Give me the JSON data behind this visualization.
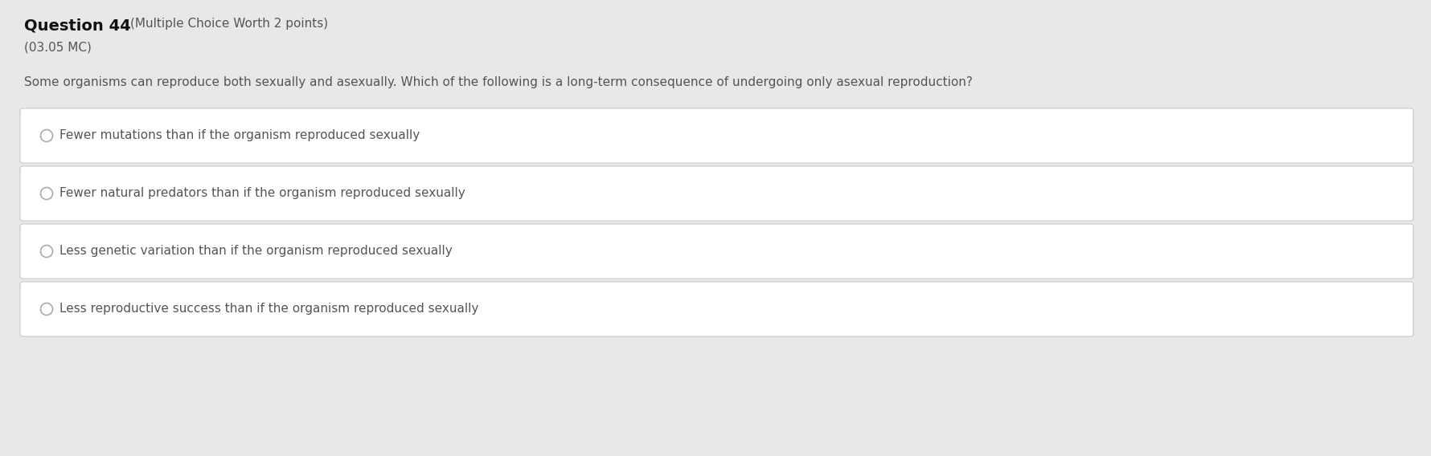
{
  "background_color": "#e8e8e8",
  "question_number": "Question 44",
  "question_meta": "(Multiple Choice Worth 2 points)",
  "question_code": "(03.05 MC)",
  "question_text": "Some organisms can reproduce both sexually and asexually. Which of the following is a long-term consequence of undergoing only asexual reproduction?",
  "options": [
    "Fewer mutations than if the organism reproduced sexually",
    "Fewer natural predators than if the organism reproduced sexually",
    "Less genetic variation than if the organism reproduced sexually",
    "Less reproductive success than if the organism reproduced sexually"
  ],
  "option_box_color": "#ffffff",
  "option_box_border_color": "#c8c8c8",
  "option_text_color": "#555555",
  "radio_color": "#aaaaaa",
  "title_bold_color": "#111111",
  "title_normal_color": "#555555",
  "subtitle_color": "#555555",
  "question_text_color": "#555555",
  "fig_width": 17.8,
  "fig_height": 5.68,
  "dpi": 100
}
